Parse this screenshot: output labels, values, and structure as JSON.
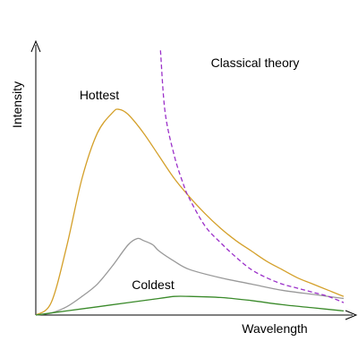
{
  "chart_data": {
    "type": "line",
    "xlabel": "Wavelength",
    "ylabel": "Intensity",
    "annotations": {
      "classical": "Classical theory",
      "hottest": "Hottest",
      "coldest": "Coldest"
    },
    "xlim": [
      0,
      1
    ],
    "ylim": [
      0,
      1
    ],
    "grid": false,
    "legend": "none",
    "series": [
      {
        "key": "hottest",
        "color": "#d4a02a",
        "x": [
          0,
          0.05,
          0.1,
          0.15,
          0.2,
          0.25,
          0.27,
          0.3,
          0.35,
          0.4,
          0.45,
          0.5,
          0.55,
          0.6,
          0.65,
          0.7,
          0.75,
          0.8,
          0.85,
          0.9,
          0.95,
          1.0
        ],
        "y": [
          0,
          0.06,
          0.33,
          0.66,
          0.88,
          0.98,
          0.995,
          0.97,
          0.88,
          0.77,
          0.66,
          0.57,
          0.49,
          0.42,
          0.36,
          0.31,
          0.26,
          0.22,
          0.18,
          0.15,
          0.12,
          0.09
        ]
      },
      {
        "key": "middle",
        "color": "#999999",
        "x": [
          0,
          0.05,
          0.1,
          0.15,
          0.2,
          0.25,
          0.3,
          0.33,
          0.35,
          0.38,
          0.4,
          0.45,
          0.5,
          0.6,
          0.7,
          0.8,
          0.9,
          1.0
        ],
        "y": [
          0,
          0.01,
          0.04,
          0.09,
          0.15,
          0.24,
          0.34,
          0.37,
          0.36,
          0.34,
          0.31,
          0.26,
          0.22,
          0.18,
          0.15,
          0.12,
          0.1,
          0.08
        ]
      },
      {
        "key": "coldest",
        "color": "#3a8a2a",
        "x": [
          0,
          0.1,
          0.2,
          0.3,
          0.4,
          0.45,
          0.5,
          0.6,
          0.7,
          0.8,
          0.9,
          1.0
        ],
        "y": [
          0,
          0.02,
          0.04,
          0.06,
          0.08,
          0.09,
          0.09,
          0.085,
          0.07,
          0.05,
          0.035,
          0.02
        ]
      },
      {
        "key": "classical",
        "color": "#9b30c9",
        "dashed": true,
        "x": [
          0.405,
          0.42,
          0.45,
          0.48,
          0.5,
          0.55,
          0.6,
          0.65,
          0.7,
          0.75,
          0.8,
          0.85,
          0.9,
          0.95,
          1.0
        ],
        "y": [
          1.28,
          0.98,
          0.77,
          0.63,
          0.56,
          0.43,
          0.35,
          0.28,
          0.22,
          0.18,
          0.15,
          0.13,
          0.11,
          0.09,
          0.06
        ]
      }
    ]
  }
}
